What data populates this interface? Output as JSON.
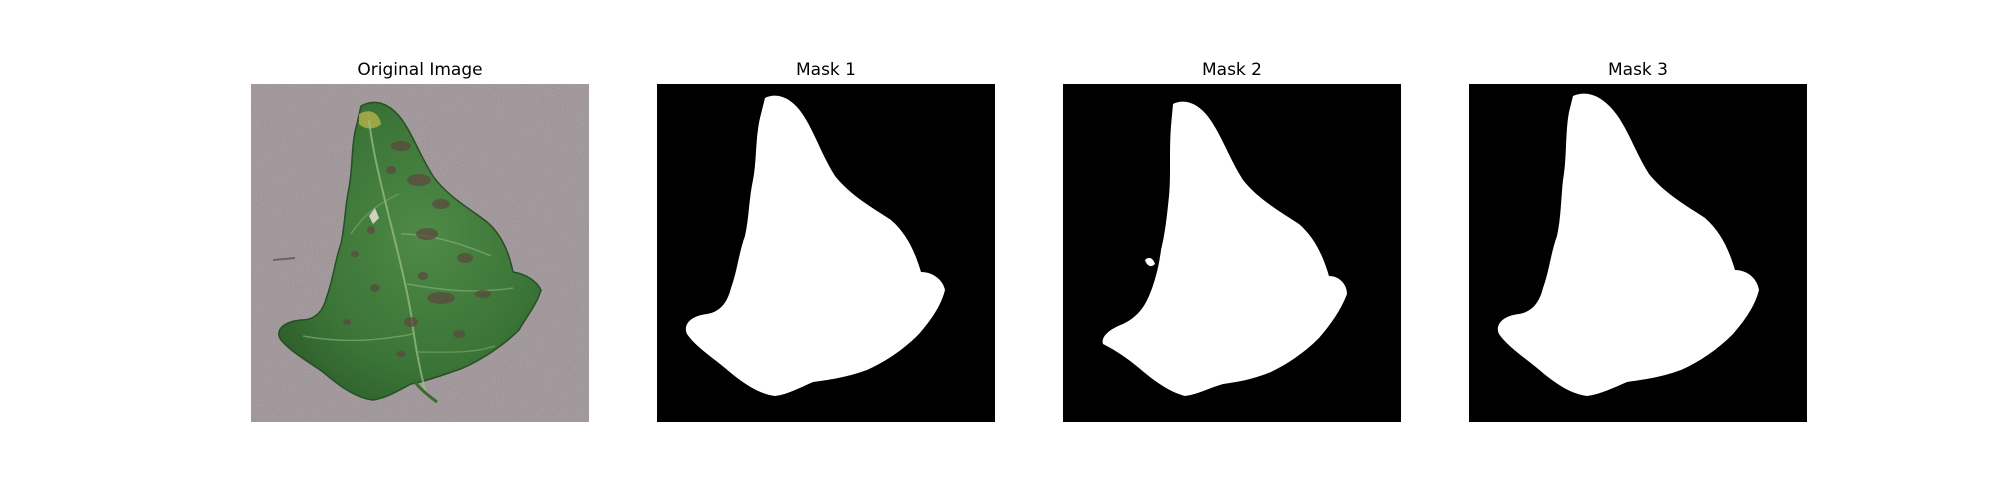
{
  "figure": {
    "panels": [
      {
        "title": "Original Image",
        "kind": "photo"
      },
      {
        "title": "Mask 1",
        "kind": "mask"
      },
      {
        "title": "Mask 2",
        "kind": "mask"
      },
      {
        "title": "Mask 3",
        "kind": "mask"
      }
    ]
  },
  "colors": {
    "background": "#ffffff",
    "mask_background": "#000000",
    "mask_foreground": "#ffffff",
    "photo_background": "#9a8f93",
    "leaf_green": "#3f7a3a"
  }
}
